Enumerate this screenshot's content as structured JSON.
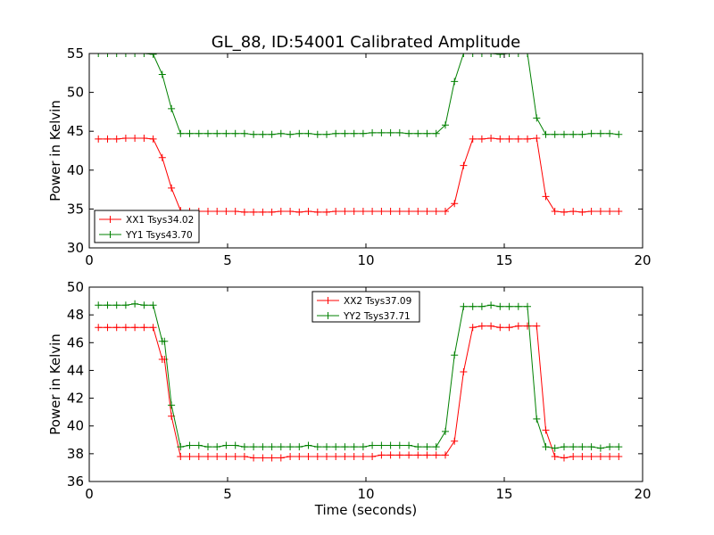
{
  "chart_data": {
    "title": "GL_88, ID:54001 Calibrated Amplitude",
    "xlabel": "Time (seconds)",
    "colors": {
      "red": "#ff0000",
      "green": "#008000"
    },
    "panels": [
      {
        "type": "line",
        "ylabel": "Power in Kelvin",
        "xlim": [
          0,
          20
        ],
        "ylim": [
          30,
          55
        ],
        "xticks": [
          0,
          5,
          10,
          15,
          20
        ],
        "yticks": [
          30,
          35,
          40,
          45,
          50,
          55
        ],
        "grid": false,
        "legend_loc": "lower-left",
        "x": [
          0.33,
          0.66,
          0.99,
          1.32,
          1.65,
          1.98,
          2.31,
          2.64,
          2.97,
          3.3,
          3.63,
          3.96,
          4.29,
          4.62,
          4.95,
          5.28,
          5.61,
          5.94,
          6.27,
          6.6,
          6.93,
          7.26,
          7.59,
          7.92,
          8.25,
          8.58,
          8.91,
          9.24,
          9.57,
          9.9,
          10.23,
          10.56,
          10.89,
          11.22,
          11.55,
          11.88,
          12.21,
          12.54,
          12.87,
          13.2,
          13.53,
          13.86,
          14.19,
          14.52,
          14.85,
          15.18,
          15.51,
          15.84,
          16.17,
          16.5,
          16.83,
          17.16,
          17.49,
          17.82,
          18.15,
          18.48,
          18.81,
          19.14
        ],
        "series": [
          {
            "name": "XX1 Tsys34.02",
            "color": "red",
            "values": [
              44.0,
              44.0,
              44.0,
              44.1,
              44.1,
              44.1,
              44.0,
              41.6,
              37.7,
              34.8,
              34.7,
              34.7,
              34.7,
              34.7,
              34.7,
              34.7,
              34.6,
              34.6,
              34.6,
              34.6,
              34.7,
              34.7,
              34.6,
              34.7,
              34.6,
              34.6,
              34.7,
              34.7,
              34.7,
              34.7,
              34.7,
              34.7,
              34.7,
              34.7,
              34.7,
              34.7,
              34.7,
              34.7,
              34.7,
              35.7,
              40.6,
              44.0,
              44.0,
              44.1,
              44.0,
              44.0,
              44.0,
              44.0,
              44.1,
              36.6,
              34.7,
              34.6,
              34.7,
              34.6,
              34.7,
              34.7,
              34.7,
              34.7
            ]
          },
          {
            "name": "YY1 Tsys43.70",
            "color": "green",
            "values": [
              55.0,
              55.0,
              55.0,
              55.0,
              55.0,
              55.0,
              54.9,
              52.3,
              47.9,
              44.7,
              44.7,
              44.7,
              44.7,
              44.7,
              44.7,
              44.7,
              44.7,
              44.6,
              44.6,
              44.6,
              44.7,
              44.6,
              44.7,
              44.7,
              44.6,
              44.6,
              44.7,
              44.7,
              44.7,
              44.7,
              44.8,
              44.8,
              44.8,
              44.8,
              44.7,
              44.7,
              44.7,
              44.7,
              45.8,
              51.4,
              55.0,
              55.0,
              55.0,
              55.0,
              54.9,
              55.0,
              55.0,
              55.0,
              46.7,
              44.6,
              44.6,
              44.6,
              44.6,
              44.6,
              44.7,
              44.7,
              44.7,
              44.6
            ]
          }
        ]
      },
      {
        "type": "line",
        "ylabel": "Power in Kelvin",
        "xlim": [
          0,
          20
        ],
        "ylim": [
          36,
          50
        ],
        "xticks": [
          0,
          5,
          10,
          15,
          20
        ],
        "yticks": [
          36,
          38,
          40,
          42,
          44,
          46,
          48,
          50
        ],
        "grid": false,
        "legend_loc": "upper-center",
        "x": [
          0.33,
          0.66,
          0.99,
          1.32,
          1.65,
          1.98,
          2.31,
          2.64,
          2.72,
          2.97,
          3.3,
          3.63,
          3.96,
          4.29,
          4.62,
          4.95,
          5.28,
          5.61,
          5.94,
          6.27,
          6.6,
          6.93,
          7.26,
          7.59,
          7.92,
          8.25,
          8.58,
          8.91,
          9.24,
          9.57,
          9.9,
          10.23,
          10.56,
          10.89,
          11.22,
          11.55,
          11.88,
          12.21,
          12.54,
          12.87,
          13.2,
          13.53,
          13.86,
          14.19,
          14.52,
          14.85,
          15.18,
          15.51,
          15.84,
          16.17,
          16.5,
          16.83,
          17.16,
          17.49,
          17.82,
          18.15,
          18.48,
          18.81,
          19.14
        ],
        "series": [
          {
            "name": "XX2 Tsys37.09",
            "color": "red",
            "values": [
              47.1,
              47.1,
              47.1,
              47.1,
              47.1,
              47.1,
              47.1,
              44.8,
              44.8,
              40.7,
              37.8,
              37.8,
              37.8,
              37.8,
              37.8,
              37.8,
              37.8,
              37.8,
              37.7,
              37.7,
              37.7,
              37.7,
              37.8,
              37.8,
              37.8,
              37.8,
              37.8,
              37.8,
              37.8,
              37.8,
              37.8,
              37.8,
              37.9,
              37.9,
              37.9,
              37.9,
              37.9,
              37.9,
              37.9,
              37.9,
              38.9,
              43.9,
              47.1,
              47.2,
              47.2,
              47.1,
              47.1,
              47.2,
              47.2,
              47.2,
              39.7,
              37.8,
              37.7,
              37.8,
              37.8,
              37.8,
              37.8,
              37.8,
              37.8
            ],
            "values_note": ""
          },
          {
            "name": "YY2 Tsys37.71",
            "color": "green",
            "values": [
              48.7,
              48.7,
              48.7,
              48.7,
              48.8,
              48.7,
              48.7,
              46.1,
              46.1,
              41.5,
              38.5,
              38.6,
              38.6,
              38.5,
              38.5,
              38.6,
              38.6,
              38.5,
              38.5,
              38.5,
              38.5,
              38.5,
              38.5,
              38.5,
              38.6,
              38.5,
              38.5,
              38.5,
              38.5,
              38.5,
              38.5,
              38.6,
              38.6,
              38.6,
              38.6,
              38.6,
              38.5,
              38.5,
              38.5,
              39.6,
              45.1,
              48.6,
              48.6,
              48.6,
              48.7,
              48.6,
              48.6,
              48.6,
              48.6,
              40.5,
              38.5,
              38.4,
              38.5,
              38.5,
              38.5,
              38.5,
              38.4,
              38.5,
              38.5
            ]
          }
        ]
      }
    ]
  }
}
